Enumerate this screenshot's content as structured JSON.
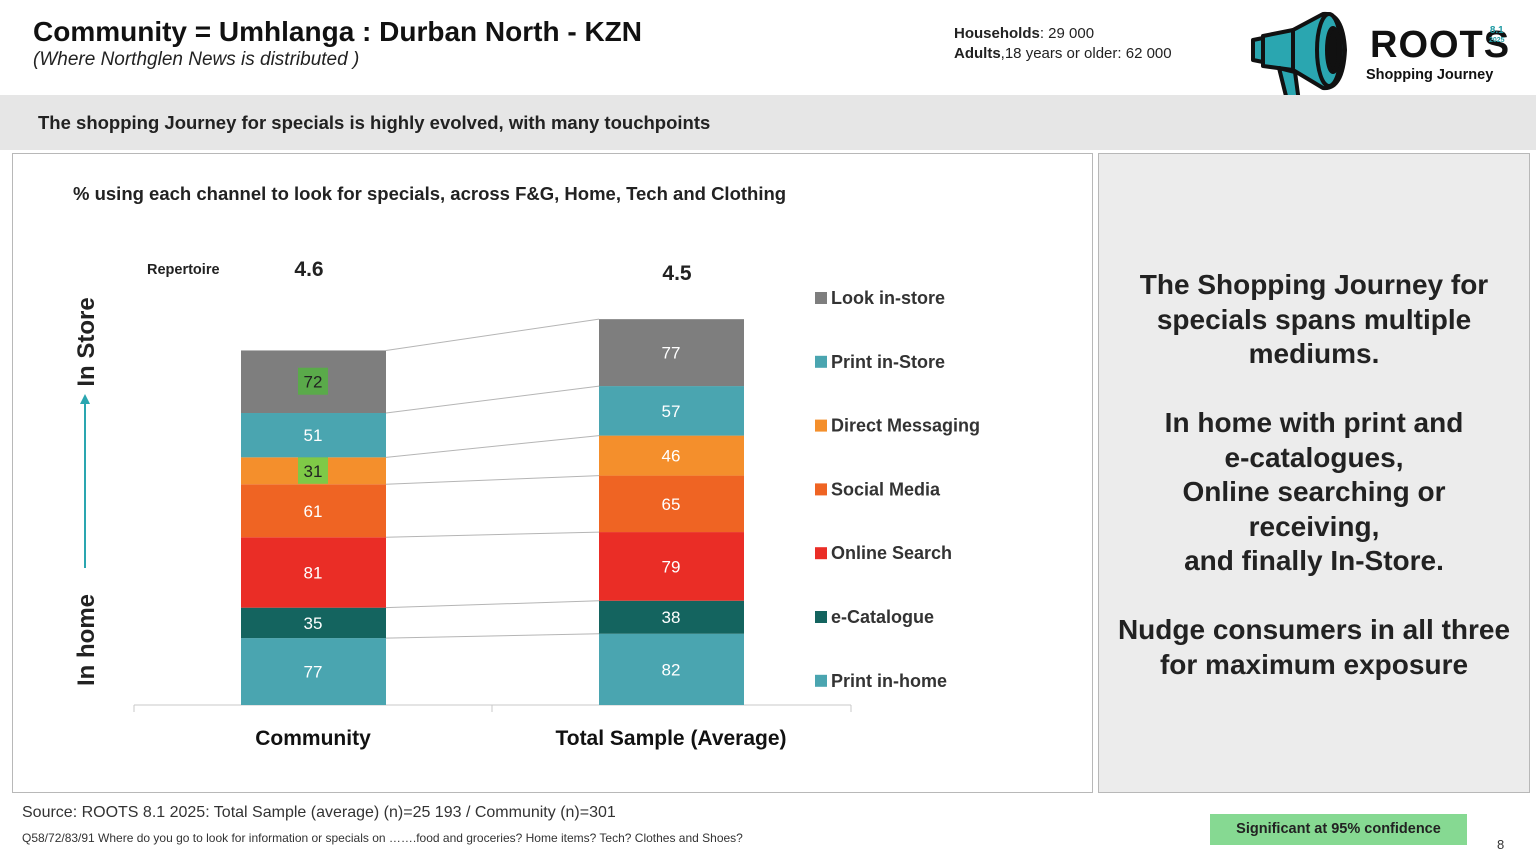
{
  "header": {
    "title": "Community = Umhlanga : Durban North - KZN",
    "subtitle": "(Where Northglen News is distributed )",
    "households_label": "Households",
    "households_value": ": 29 000",
    "adults_label": "Adults",
    "adults_value": ",18 years or older: 62 000"
  },
  "logo": {
    "name": "ROOTS",
    "version_major": "8.1",
    "version_year": "2025",
    "subtitle": "Shopping Journey",
    "icon": "megaphone-icon"
  },
  "banner": {
    "text": "The shopping Journey for specials is highly evolved, with many touchpoints"
  },
  "axis_side_labels": {
    "top": "In Store",
    "bottom": "In home"
  },
  "chart_data": {
    "type": "bar",
    "stacked": true,
    "title": "% using each channel to look for specials, across F&G, Home, Tech and Clothing",
    "categories": [
      "Community",
      "Total Sample (Average)"
    ],
    "repertoire_label": "Repertoire",
    "repertoire": [
      "4.6",
      "4.5"
    ],
    "series": [
      {
        "name": "Print in-home",
        "color": "#4aa5b0",
        "values": [
          77,
          82
        ]
      },
      {
        "name": "e-Catalogue",
        "color": "#14645f",
        "values": [
          35,
          38
        ]
      },
      {
        "name": "Online Search",
        "color": "#ea2d26",
        "values": [
          81,
          79
        ]
      },
      {
        "name": "Social Media",
        "color": "#ef6423",
        "values": [
          61,
          65
        ]
      },
      {
        "name": "Direct Messaging",
        "color": "#f48f2c",
        "values": [
          31,
          46
        ]
      },
      {
        "name": "Print in-Store",
        "color": "#4aa5b0",
        "values": [
          51,
          57
        ]
      },
      {
        "name": "Look in-store",
        "color": "#7e7e7e",
        "values": [
          72,
          77
        ]
      }
    ],
    "significant": [
      {
        "category": 0,
        "series": "Direct Messaging",
        "highlight": "#7fc947"
      },
      {
        "category": 0,
        "series": "Look in-store",
        "highlight": "#5aaa4a"
      }
    ],
    "legend_position": "right",
    "legend_order": [
      "Look in-store",
      "Print in-Store",
      "Direct Messaging",
      "Social Media",
      "Online Search",
      "e-Catalogue",
      "Print in-home"
    ]
  },
  "right_panel": {
    "lines": [
      "The Shopping Journey for",
      "specials spans multiple",
      "mediums.",
      "",
      "In home with print and",
      "e-catalogues,",
      "Online searching or",
      "receiving,",
      "and finally In-Store.",
      "",
      "Nudge consumers in all three",
      "for maximum exposure"
    ]
  },
  "footer": {
    "source": "Source: ROOTS 8.1 2025:  Total Sample (average) (n)=25 193 / Community (n)=301",
    "question": "Q58/72/83/91 Where do you go to look for information or specials on …….food and groceries? Home items? Tech? Clothes and Shoes?",
    "significance": "Significant at 95% confidence",
    "page_number": "8"
  }
}
